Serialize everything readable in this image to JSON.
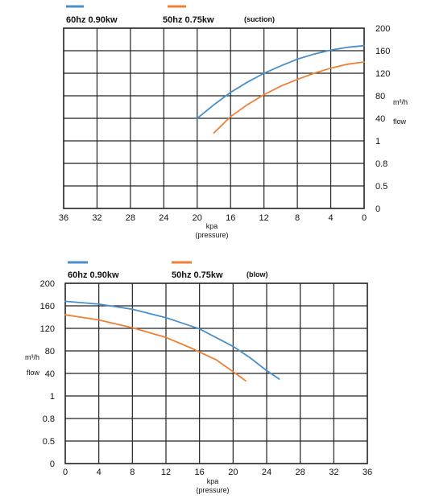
{
  "colors": {
    "series_60hz": "#4a8fc9",
    "series_50hz": "#ee8136",
    "grid": "#222222"
  },
  "chart_data": [
    {
      "type": "line",
      "note": "suction",
      "legend": {
        "s60": "60hz 0.90kw",
        "s50": "50hz  0.75kw",
        "mode": "(suction)"
      },
      "x_axis": {
        "direction": "reversed",
        "range": [
          36,
          0
        ],
        "ticks": [
          "36",
          "32",
          "28",
          "24",
          "20",
          "16",
          "12",
          "8",
          "4",
          "0"
        ],
        "label": "kpa",
        "label2": "(pressure)"
      },
      "y_axis": {
        "side": "right",
        "ticks": [
          "0",
          "0.5",
          "0.8",
          "1",
          "40",
          "80",
          "120",
          "160",
          "200"
        ],
        "unit": "m³/h",
        "label": "flow"
      },
      "series": [
        {
          "name": "60hz 0.90kw",
          "color": "#4a8fc9",
          "points": [
            [
              20,
              40
            ],
            [
              18,
              64
            ],
            [
              16,
              86
            ],
            [
              14,
              104
            ],
            [
              12,
              120
            ],
            [
              10,
              133
            ],
            [
              8,
              145
            ],
            [
              6,
              154
            ],
            [
              4,
              161
            ],
            [
              2,
              166
            ],
            [
              0,
              169
            ]
          ]
        },
        {
          "name": "50hz  0.75kw",
          "color": "#ee8136",
          "points": [
            [
              18,
              14
            ],
            [
              16,
              43
            ],
            [
              14,
              64
            ],
            [
              12,
              82
            ],
            [
              10,
              97
            ],
            [
              8,
              109
            ],
            [
              6,
              120
            ],
            [
              4,
              129
            ],
            [
              2,
              136
            ],
            [
              0,
              140
            ]
          ]
        }
      ]
    },
    {
      "type": "line",
      "note": "blow",
      "legend": {
        "s60": "60hz 0.90kw",
        "s50": "50hz  0.75kw",
        "mode": "(blow)"
      },
      "x_axis": {
        "direction": "normal",
        "range": [
          0,
          36
        ],
        "ticks": [
          "0",
          "4",
          "8",
          "12",
          "16",
          "20",
          "24",
          "28",
          "32",
          "36"
        ],
        "label": "kpa",
        "label2": "(pressure)"
      },
      "y_axis": {
        "side": "left",
        "ticks": [
          "0",
          "0.5",
          "0.8",
          "1",
          "40",
          "80",
          "120",
          "160",
          "200"
        ],
        "unit": "m³/h",
        "label": "flow"
      },
      "series": [
        {
          "name": "60hz 0.90kw",
          "color": "#4a8fc9",
          "points": [
            [
              0,
              168
            ],
            [
              4,
              163
            ],
            [
              8,
              154
            ],
            [
              12,
              139
            ],
            [
              16,
              119
            ],
            [
              20,
              88
            ],
            [
              22,
              68
            ],
            [
              24,
              45
            ],
            [
              25.5,
              30
            ]
          ]
        },
        {
          "name": "50hz  0.75kw",
          "color": "#ee8136",
          "points": [
            [
              0,
              144
            ],
            [
              4,
              135
            ],
            [
              8,
              121
            ],
            [
              12,
              104
            ],
            [
              15,
              85
            ],
            [
              18,
              64
            ],
            [
              20,
              43
            ],
            [
              21.5,
              27
            ]
          ]
        }
      ]
    }
  ]
}
